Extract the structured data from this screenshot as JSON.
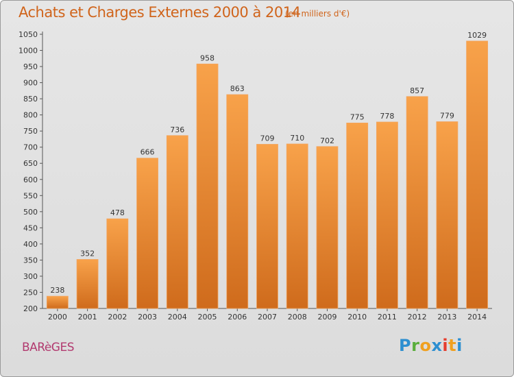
{
  "header": {
    "title": "Achats et Charges Externes 2000 à 2014",
    "unit": "(en milliers d'€)"
  },
  "footer": {
    "place": "BARèGES",
    "brand_letters": [
      "P",
      "r",
      "o",
      "x",
      "i",
      "t",
      "i"
    ],
    "brand_colors": [
      "#2d8fd0",
      "#5aae3c",
      "#f0a020",
      "#2d8fd0",
      "#e63d2e",
      "#f0a020",
      "#2d8fd0"
    ]
  },
  "colors": {
    "bar_top": "#f8a24a",
    "bar_bottom": "#cf6b1c",
    "accent": "#d0641b"
  },
  "chart_data": {
    "type": "bar",
    "categories": [
      "2000",
      "2001",
      "2002",
      "2003",
      "2004",
      "2005",
      "2006",
      "2007",
      "2008",
      "2009",
      "2010",
      "2011",
      "2012",
      "2013",
      "2014"
    ],
    "values": [
      238,
      352,
      478,
      666,
      736,
      958,
      863,
      709,
      710,
      702,
      775,
      778,
      857,
      779,
      1029
    ],
    "ylim": [
      200,
      1050
    ],
    "yticks": [
      200,
      250,
      300,
      350,
      400,
      450,
      500,
      550,
      600,
      650,
      700,
      750,
      800,
      850,
      900,
      950,
      1000,
      1050
    ],
    "grid": false,
    "legend": "none"
  }
}
